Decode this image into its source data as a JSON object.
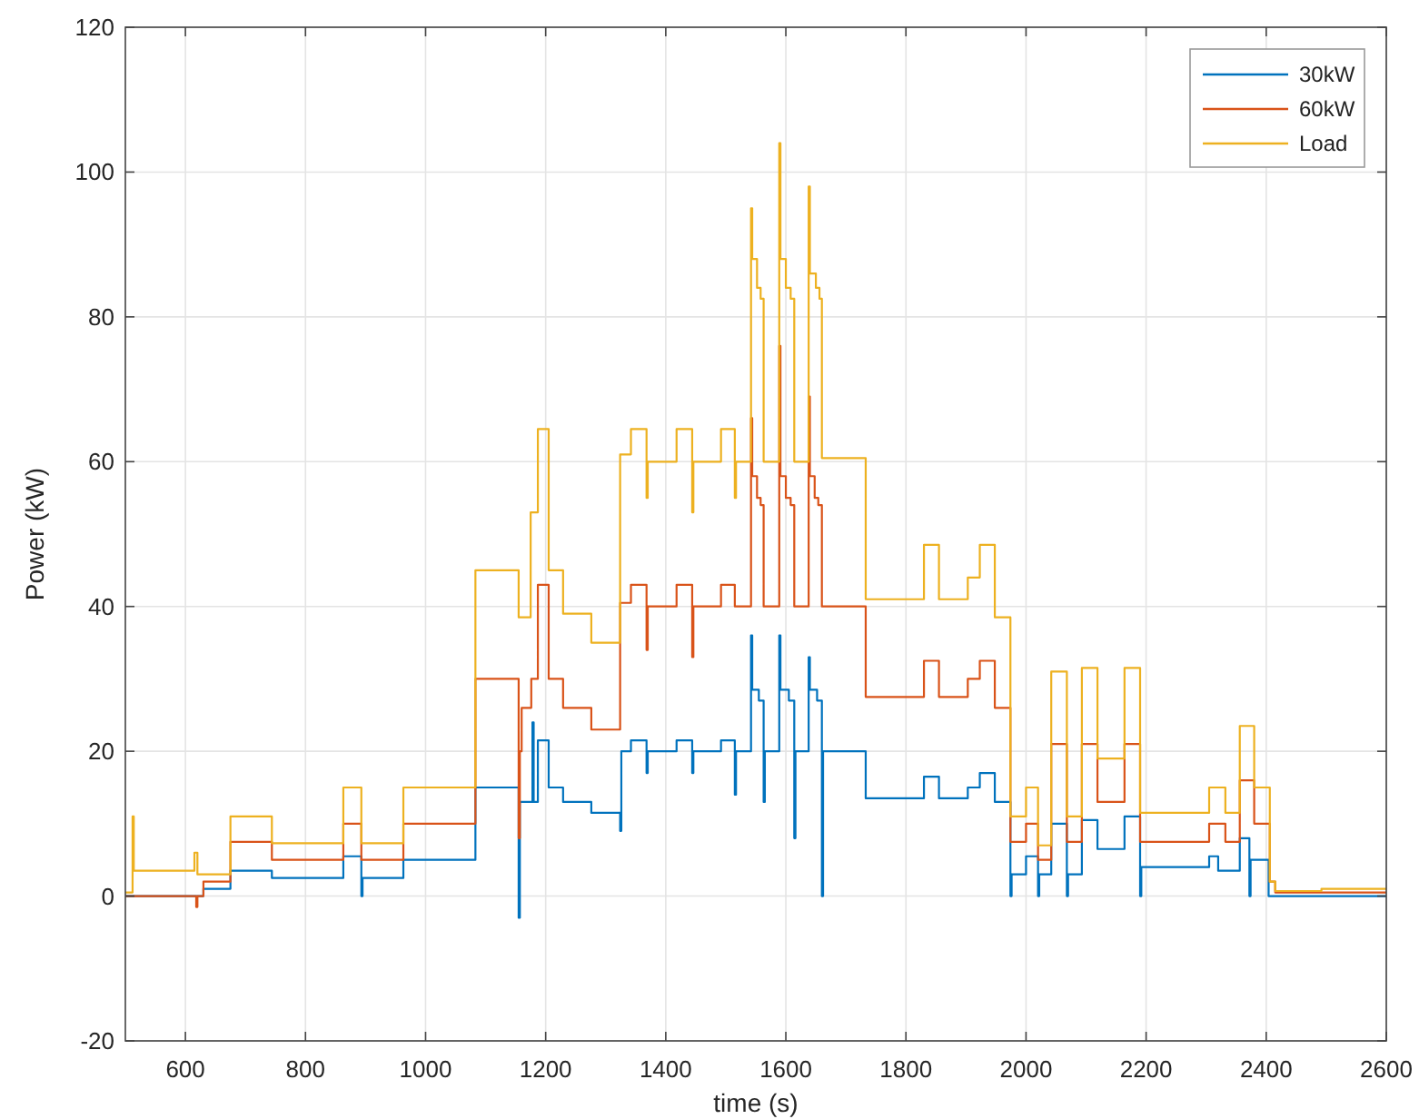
{
  "chart_data": {
    "type": "step",
    "xlabel": "time (s)",
    "ylabel": "Power (kW)",
    "xlim": [
      500,
      2600
    ],
    "xticks": [
      600,
      800,
      1000,
      1200,
      1400,
      1600,
      1800,
      2000,
      2200,
      2400,
      2600
    ],
    "ylim": [
      -20,
      120
    ],
    "yticks": [
      -20,
      0,
      20,
      40,
      60,
      80,
      100,
      120
    ],
    "grid": true,
    "legend": "top right",
    "series": [
      {
        "name": "30kW",
        "color": "#0072bd",
        "x": [
          500,
          630,
          675,
          744,
          863,
          893,
          895,
          963,
          1083,
          1155,
          1157,
          1178,
          1180,
          1187,
          1205,
          1229,
          1276,
          1324,
          1326,
          1342,
          1368,
          1370,
          1418,
          1444,
          1446,
          1492,
          1515,
          1517,
          1542,
          1544,
          1555,
          1563,
          1565,
          1589,
          1591,
          1605,
          1614,
          1616,
          1638,
          1640,
          1652,
          1660,
          1662,
          1733,
          1830,
          1855,
          1903,
          1923,
          1948,
          1974,
          1976,
          2000,
          2020,
          2022,
          2042,
          2068,
          2070,
          2093,
          2119,
          2164,
          2190,
          2192,
          2305,
          2320,
          2356,
          2372,
          2374,
          2404,
          2600
        ],
        "values": [
          0,
          1,
          3.5,
          2.5,
          5.5,
          0,
          2.5,
          5,
          15,
          -3,
          13,
          24,
          13,
          21.5,
          15,
          13,
          11.5,
          9,
          20,
          21.5,
          17,
          20,
          21.5,
          17,
          20,
          21.5,
          14,
          20,
          36,
          28.5,
          27,
          13,
          20,
          36,
          28.5,
          27,
          8,
          20,
          33,
          28.5,
          27,
          0,
          20,
          13.5,
          16.5,
          13.5,
          15,
          17,
          13,
          0,
          3,
          5.5,
          0,
          3,
          10,
          0,
          3,
          10.5,
          6.5,
          11,
          0,
          4,
          5.5,
          3.5,
          8,
          0,
          5,
          0,
          0
        ]
      },
      {
        "name": "60kW",
        "color": "#d95319",
        "x": [
          500,
          618,
          620,
          630,
          675,
          744,
          863,
          893,
          963,
          1083,
          1155,
          1157,
          1160,
          1176,
          1187,
          1205,
          1229,
          1276,
          1324,
          1342,
          1368,
          1370,
          1418,
          1444,
          1446,
          1492,
          1515,
          1542,
          1544,
          1552,
          1558,
          1563,
          1589,
          1591,
          1600,
          1608,
          1614,
          1638,
          1640,
          1648,
          1654,
          1660,
          1733,
          1830,
          1855,
          1903,
          1923,
          1948,
          1974,
          2000,
          2020,
          2042,
          2068,
          2093,
          2119,
          2164,
          2190,
          2305,
          2332,
          2356,
          2380,
          2406,
          2415,
          2600
        ],
        "values": [
          0,
          -1.5,
          0,
          2,
          7.5,
          5,
          10,
          5,
          10,
          30,
          8,
          20,
          26,
          30,
          43,
          30,
          26,
          23,
          40.5,
          43,
          34,
          40,
          43,
          33,
          40,
          43,
          40,
          66,
          58,
          55,
          54,
          40,
          76,
          58,
          55,
          54,
          40,
          69,
          58,
          55,
          54,
          40,
          27.5,
          32.5,
          27.5,
          30,
          32.5,
          26,
          7.5,
          10,
          5,
          21,
          7.5,
          21,
          13,
          21,
          7.5,
          10,
          7.5,
          16,
          10,
          2,
          0.5,
          0.5
        ]
      },
      {
        "name": "Load",
        "color": "#edb120",
        "x": [
          500,
          512,
          514,
          615,
          620,
          675,
          744,
          863,
          893,
          963,
          1083,
          1155,
          1175,
          1187,
          1205,
          1229,
          1276,
          1324,
          1342,
          1368,
          1370,
          1418,
          1444,
          1446,
          1492,
          1515,
          1517,
          1542,
          1544,
          1552,
          1558,
          1563,
          1589,
          1591,
          1600,
          1608,
          1614,
          1638,
          1640,
          1650,
          1656,
          1660,
          1733,
          1830,
          1855,
          1903,
          1923,
          1948,
          1974,
          2000,
          2020,
          2042,
          2068,
          2093,
          2119,
          2164,
          2190,
          2305,
          2332,
          2356,
          2380,
          2406,
          2415,
          2492,
          2600
        ],
        "values": [
          0.5,
          11,
          3.5,
          6,
          3,
          11,
          7.3,
          15,
          7.3,
          15,
          45,
          38.5,
          53,
          64.5,
          45,
          39,
          35,
          61,
          64.5,
          55,
          60,
          64.5,
          53,
          60,
          64.5,
          55,
          60,
          95,
          88,
          84,
          82.5,
          60,
          104,
          88,
          84,
          82.5,
          60,
          98,
          86,
          84,
          82.5,
          60.5,
          41,
          48.5,
          41,
          44,
          48.5,
          38.5,
          11,
          15,
          7,
          31,
          11,
          31.5,
          19,
          31.5,
          11.5,
          15,
          11.5,
          23.5,
          15,
          2,
          0.7,
          1,
          1
        ]
      }
    ]
  }
}
